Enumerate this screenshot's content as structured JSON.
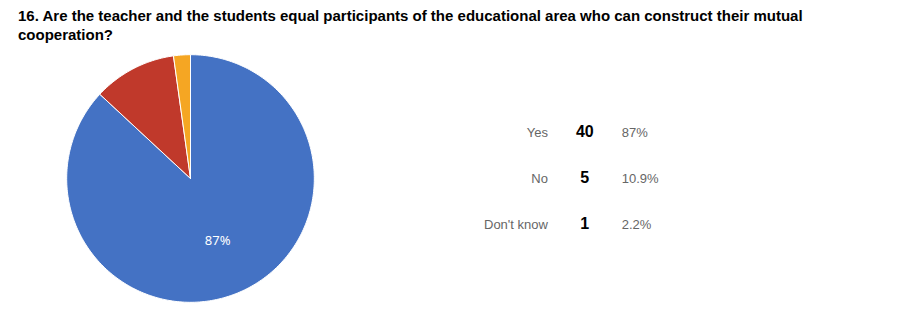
{
  "chart_data": {
    "type": "pie",
    "title": "16. Are the teacher and the students equal participants of the educational area who can construct their mutual cooperation?",
    "categories": [
      "Yes",
      "No",
      "Don't know"
    ],
    "values": [
      87.0,
      10.9,
      2.2
    ],
    "value_labels": [
      "87%",
      "10.9%",
      "2.2%"
    ],
    "counts": [
      40,
      5,
      1
    ],
    "colors": [
      "#4472C4",
      "#C0392B",
      "#F5A623"
    ],
    "annotations": [
      {
        "text": "87%",
        "category": "Yes"
      }
    ],
    "legend": "right"
  }
}
